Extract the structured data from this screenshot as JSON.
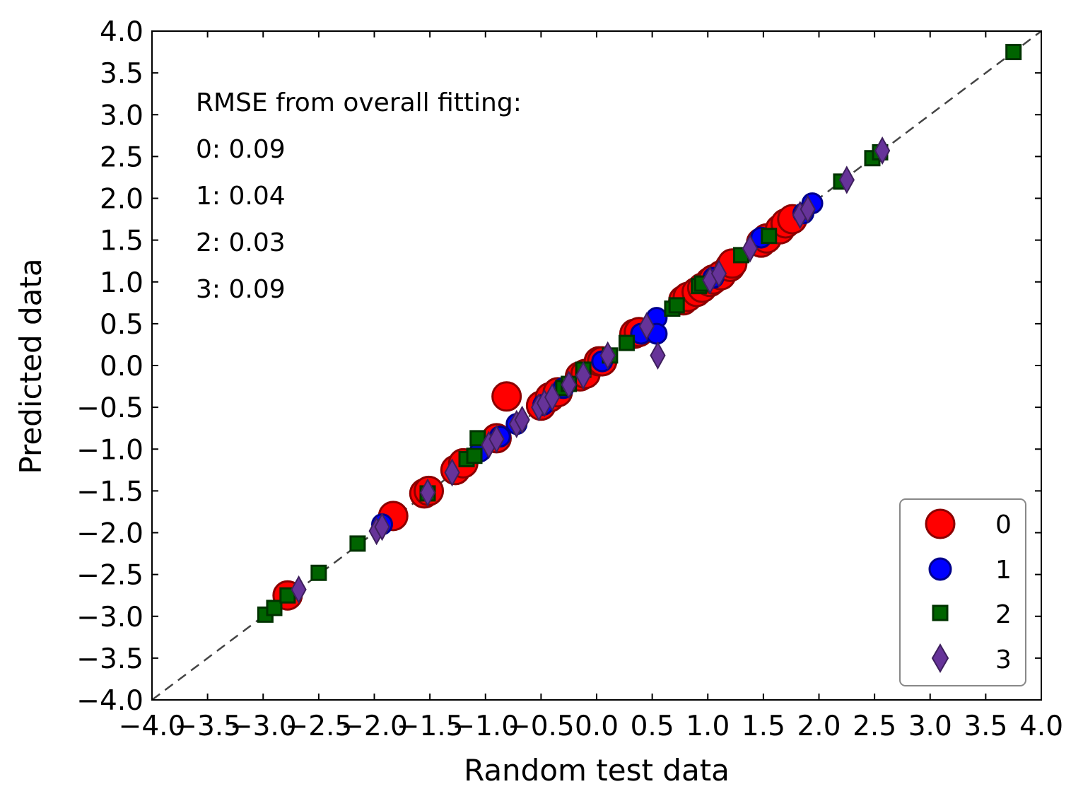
{
  "chart_data": {
    "type": "scatter",
    "xlabel": "Random test data",
    "ylabel": "Predicted data",
    "xlim": [
      -4.0,
      4.0
    ],
    "ylim": [
      -4.0,
      4.0
    ],
    "xticks": [
      "−4.0",
      "−3.5",
      "−3.0",
      "−2.5",
      "−2.0",
      "−1.5",
      "−1.0",
      "−0.5",
      "0.0",
      "0.5",
      "1.0",
      "1.5",
      "2.0",
      "2.5",
      "3.0",
      "3.5",
      "4.0"
    ],
    "yticks": [
      "−4.0",
      "−3.5",
      "−3.0",
      "−2.5",
      "−2.0",
      "−1.5",
      "−1.0",
      "−0.5",
      "0.0",
      "0.5",
      "1.0",
      "1.5",
      "2.0",
      "2.5",
      "3.0",
      "3.5",
      "4.0"
    ],
    "grid": false,
    "legend_position": "bottom-right",
    "reference_line": "y = x, dashed",
    "annotations": [
      "RMSE from overall fitting:",
      "0: 0.09",
      "1: 0.04",
      "2: 0.03",
      "3: 0.09"
    ],
    "series": [
      {
        "name": "0",
        "marker": "circle",
        "color": "#ff0000",
        "edge_color": "#8b0000",
        "points": [
          [
            -2.78,
            -2.75
          ],
          [
            -1.83,
            -1.8
          ],
          [
            -1.55,
            -1.53
          ],
          [
            -1.51,
            -1.5
          ],
          [
            -1.27,
            -1.25
          ],
          [
            -1.2,
            -1.17
          ],
          [
            -0.9,
            -0.87
          ],
          [
            -0.81,
            -0.37
          ],
          [
            -0.5,
            -0.48
          ],
          [
            -0.42,
            -0.38
          ],
          [
            -0.35,
            -0.32
          ],
          [
            -0.15,
            -0.13
          ],
          [
            -0.1,
            -0.1
          ],
          [
            0.02,
            0.05
          ],
          [
            0.05,
            0.05
          ],
          [
            0.34,
            0.38
          ],
          [
            0.38,
            0.4
          ],
          [
            0.78,
            0.78
          ],
          [
            0.82,
            0.82
          ],
          [
            0.9,
            0.88
          ],
          [
            0.95,
            0.93
          ],
          [
            1.02,
            1.0
          ],
          [
            1.05,
            1.03
          ],
          [
            1.12,
            1.08
          ],
          [
            1.2,
            1.18
          ],
          [
            1.22,
            1.22
          ],
          [
            1.48,
            1.47
          ],
          [
            1.53,
            1.52
          ],
          [
            1.65,
            1.63
          ],
          [
            1.7,
            1.7
          ],
          [
            1.76,
            1.75
          ]
        ]
      },
      {
        "name": "1",
        "marker": "circle",
        "color": "#0000ff",
        "edge_color": "#00008b",
        "points": [
          [
            -1.93,
            -1.9
          ],
          [
            -1.05,
            -1.03
          ],
          [
            -0.87,
            -0.85
          ],
          [
            -0.72,
            -0.7
          ],
          [
            -0.48,
            -0.47
          ],
          [
            -0.3,
            -0.27
          ],
          [
            0.05,
            0.05
          ],
          [
            0.4,
            0.38
          ],
          [
            0.5,
            0.48
          ],
          [
            0.54,
            0.57
          ],
          [
            0.54,
            0.38
          ],
          [
            1.05,
            1.05
          ],
          [
            1.48,
            1.53
          ],
          [
            1.86,
            1.82
          ],
          [
            1.94,
            1.94
          ]
        ]
      },
      {
        "name": "2",
        "marker": "square",
        "color": "#006400",
        "edge_color": "#003300",
        "points": [
          [
            -2.98,
            -2.98
          ],
          [
            -2.9,
            -2.9
          ],
          [
            -2.78,
            -2.75
          ],
          [
            -2.5,
            -2.48
          ],
          [
            -2.15,
            -2.13
          ],
          [
            -1.52,
            -1.53
          ],
          [
            -1.17,
            -1.12
          ],
          [
            -1.1,
            -1.08
          ],
          [
            -1.07,
            -0.87
          ],
          [
            -0.3,
            -0.27
          ],
          [
            -0.25,
            -0.22
          ],
          [
            -0.12,
            -0.05
          ],
          [
            0.12,
            0.12
          ],
          [
            0.27,
            0.27
          ],
          [
            0.68,
            0.68
          ],
          [
            0.72,
            0.72
          ],
          [
            0.92,
            0.95
          ],
          [
            0.95,
            0.98
          ],
          [
            1.3,
            1.32
          ],
          [
            1.55,
            1.55
          ],
          [
            2.2,
            2.2
          ],
          [
            2.48,
            2.48
          ],
          [
            2.55,
            2.55
          ],
          [
            3.75,
            3.75
          ]
        ]
      },
      {
        "name": "3",
        "marker": "diamond",
        "color": "#663399",
        "edge_color": "#3d1f5c",
        "points": [
          [
            -2.68,
            -2.68
          ],
          [
            -1.98,
            -1.98
          ],
          [
            -1.93,
            -1.93
          ],
          [
            -1.52,
            -1.52
          ],
          [
            -1.3,
            -1.28
          ],
          [
            -0.97,
            -0.95
          ],
          [
            -0.9,
            -0.88
          ],
          [
            -0.72,
            -0.7
          ],
          [
            -0.67,
            -0.65
          ],
          [
            -0.52,
            -0.5
          ],
          [
            -0.47,
            -0.45
          ],
          [
            -0.4,
            -0.38
          ],
          [
            -0.25,
            -0.23
          ],
          [
            -0.12,
            -0.12
          ],
          [
            0.1,
            0.12
          ],
          [
            0.45,
            0.47
          ],
          [
            0.55,
            0.12
          ],
          [
            1.02,
            1.02
          ],
          [
            1.1,
            1.1
          ],
          [
            1.38,
            1.4
          ],
          [
            1.83,
            1.8
          ],
          [
            1.9,
            1.87
          ],
          [
            2.25,
            2.22
          ],
          [
            2.57,
            2.57
          ]
        ]
      }
    ]
  }
}
